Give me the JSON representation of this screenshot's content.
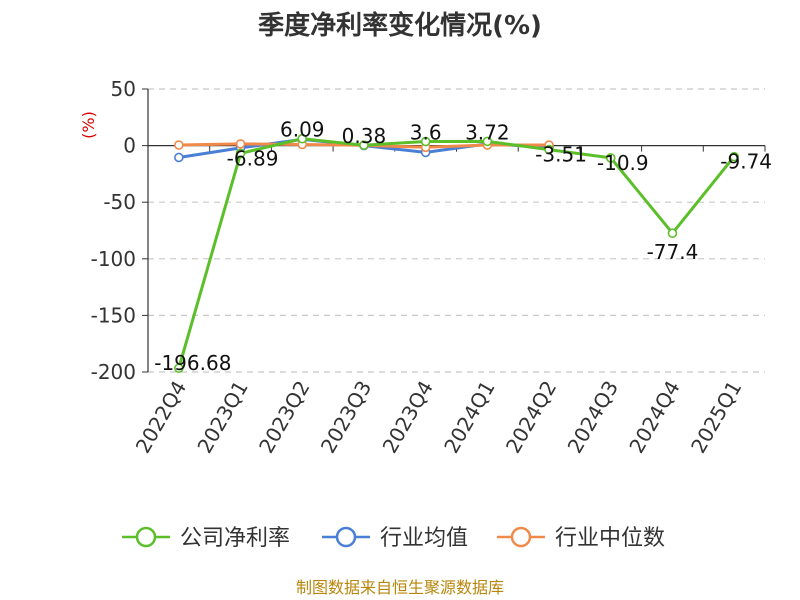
{
  "chart_data": {
    "type": "line",
    "title": "季度净利率变化情况(%)",
    "ylabel": "(%)",
    "ylim": [
      -200,
      50
    ],
    "yticks": [
      50,
      0,
      -50,
      -100,
      -150,
      -200
    ],
    "ytick_labels": [
      "50",
      "0",
      "-50",
      "-100",
      "-150",
      "-200"
    ],
    "grid": true,
    "legend_position": "bottom",
    "categories": [
      "2022Q4",
      "2023Q1",
      "2023Q2",
      "2023Q3",
      "2023Q4",
      "2024Q1",
      "2024Q2",
      "2024Q3",
      "2024Q4",
      "2025Q1"
    ],
    "series": [
      {
        "name": "公司净利率",
        "color": "#5cbf2a",
        "values": [
          -196.68,
          -6.89,
          6.09,
          0.38,
          3.6,
          3.72,
          -3.51,
          -10.9,
          -77.4,
          -9.74
        ],
        "labels": [
          "-196.68",
          "-6.89",
          "6.09",
          "0.38",
          "3.6",
          "3.72",
          "-3.51",
          "-10.9",
          "-77.4",
          "-9.74"
        ]
      },
      {
        "name": "行业均值",
        "color": "#4a7fd6",
        "values": [
          -10.5,
          -2,
          5.5,
          0,
          -6,
          1.5,
          -1.5,
          null,
          null,
          null
        ]
      },
      {
        "name": "行业中位数",
        "color": "#f08a4b",
        "values": [
          0.5,
          1.5,
          1,
          0.3,
          -1.5,
          0.5,
          0.5,
          null,
          null,
          null
        ]
      }
    ],
    "source": "制图数据来自恒生聚源数据库"
  }
}
